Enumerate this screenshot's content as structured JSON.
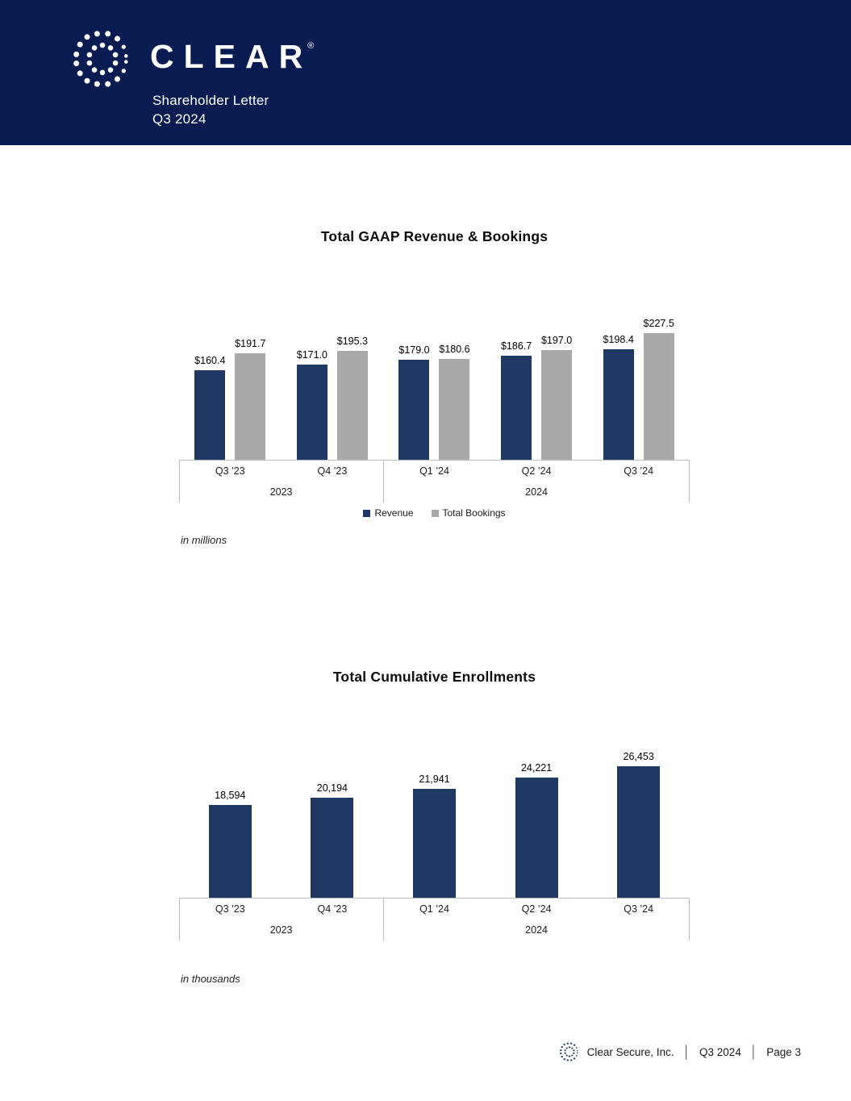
{
  "header": {
    "brand": "CLEAR",
    "registered_mark": "®",
    "subtitle_line1": "Shareholder Letter",
    "subtitle_line2": "Q3 2024"
  },
  "colors": {
    "header_background": "#081c52",
    "bar_navy": "#1f3864",
    "bar_gray": "#a9a9a9",
    "axis_line": "#bfbfbf"
  },
  "chart_data": [
    {
      "type": "bar",
      "title": "Total GAAP Revenue & Bookings",
      "categories": [
        "Q3 ’23",
        "Q4 ’23",
        "Q1 ’24",
        "Q2 ’24",
        "Q3 ’24"
      ],
      "year_groups": [
        {
          "label": "2023",
          "span": 2
        },
        {
          "label": "2024",
          "span": 3
        }
      ],
      "series": [
        {
          "name": "Revenue",
          "color": "#1f3864",
          "values": [
            160.4,
            171.0,
            179.0,
            186.7,
            198.4
          ],
          "labels": [
            "$160.4",
            "$171.0",
            "$179.0",
            "$186.7",
            "$198.4"
          ]
        },
        {
          "name": "Total Bookings",
          "color": "#a9a9a9",
          "values": [
            191.7,
            195.3,
            180.6,
            197.0,
            227.5
          ],
          "labels": [
            "$191.7",
            "$195.3",
            "$180.6",
            "$197.0",
            "$227.5"
          ]
        }
      ],
      "unit_note": "in millions",
      "ylim": [
        0,
        235
      ],
      "grid": false,
      "legend_position": "bottom"
    },
    {
      "type": "bar",
      "title": "Total Cumulative Enrollments",
      "categories": [
        "Q3 ’23",
        "Q4 ’23",
        "Q1 ’24",
        "Q2 ’24",
        "Q3 ’24"
      ],
      "year_groups": [
        {
          "label": "2023",
          "span": 2
        },
        {
          "label": "2024",
          "span": 3
        }
      ],
      "series": [
        {
          "name": "Total Cumulative Enrollments",
          "color": "#1f3864",
          "values": [
            18594,
            20194,
            21941,
            24221,
            26453
          ],
          "labels": [
            "18,594",
            "20,194",
            "21,941",
            "24,221",
            "26,453"
          ]
        }
      ],
      "unit_note": "in thousands",
      "ylim": [
        0,
        28000
      ],
      "grid": false,
      "legend_position": "none"
    }
  ],
  "footer": {
    "company": "Clear Secure, Inc.",
    "separator": "│",
    "period": "Q3 2024",
    "page": "Page 3"
  }
}
